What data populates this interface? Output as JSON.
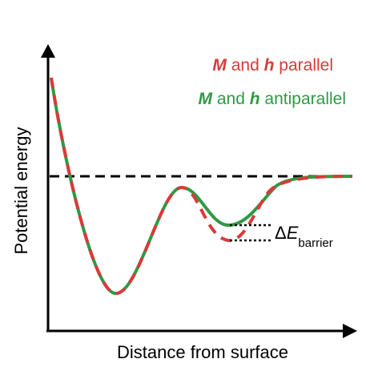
{
  "axes": {
    "y_label": "Potential energy",
    "x_label": "Distance from surface"
  },
  "legend": [
    {
      "symbol_a": "M",
      "connector": " and ",
      "symbol_b": "h",
      "label": " parallel",
      "color": "#d93a3a"
    },
    {
      "symbol_a": "M",
      "connector": " and ",
      "symbol_b": "h",
      "label": " antiparallel",
      "color": "#2e9a44"
    }
  ],
  "annotation": {
    "prefix": "Δ",
    "symbol": "E",
    "subscript": "barrier"
  },
  "colors": {
    "axis": "#000000",
    "reference_line": "#000000",
    "parallel": "#d93a3a",
    "antiparallel": "#2e9a44"
  }
}
